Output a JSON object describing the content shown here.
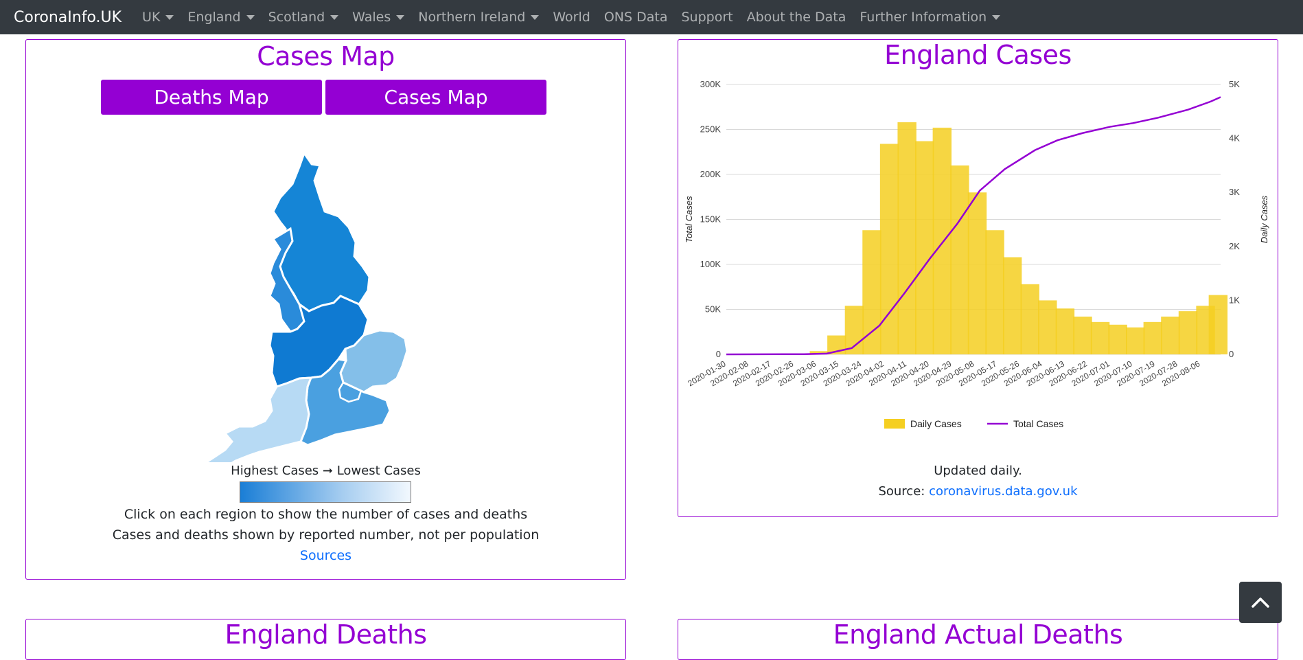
{
  "nav": {
    "brand": "CoronaInfo.UK",
    "items": [
      {
        "label": "UK",
        "dropdown": true
      },
      {
        "label": "England",
        "dropdown": true
      },
      {
        "label": "Scotland",
        "dropdown": true
      },
      {
        "label": "Wales",
        "dropdown": true
      },
      {
        "label": "Northern Ireland",
        "dropdown": true
      },
      {
        "label": "World",
        "dropdown": false
      },
      {
        "label": "ONS Data",
        "dropdown": false
      },
      {
        "label": "Support",
        "dropdown": false
      },
      {
        "label": "About the Data",
        "dropdown": false
      },
      {
        "label": "Further Information",
        "dropdown": true
      }
    ]
  },
  "map_card": {
    "title": "Cases Map",
    "deaths_button": "Deaths Map",
    "cases_button": "Cases Map",
    "legend_title": "Highest Cases ➞ Lowest Cases",
    "info_line1": "Click on each region to show the number of cases and deaths",
    "info_line2": "Cases and deaths shown by reported number, not per population",
    "sources_link": "Sources",
    "region_colors": {
      "north": "#1585d6",
      "northwest": "#2a8bda",
      "midlands": "#0f7ad2",
      "east": "#84bfe9",
      "south": "#4aa0e0",
      "southwest": "#b7daf4"
    }
  },
  "cases_card": {
    "title": "England Cases",
    "updated": "Updated daily.",
    "source_prefix": "Source:",
    "source_link": "coronavirus.data.gov.uk"
  },
  "deaths_card": {
    "title": "England Deaths"
  },
  "actual_card": {
    "title": "England Actual Deaths"
  },
  "colors": {
    "accent": "#9400d3",
    "bar": "#f5cf21",
    "line": "#9400d3",
    "navbar": "#343a40"
  },
  "chart_data": {
    "type": "bar",
    "title": "England Cases",
    "y_left_label": "Total Cases",
    "y_right_label": "Daily Cases",
    "y_left_ticks": [
      "0",
      "50K",
      "100K",
      "150K",
      "200K",
      "250K",
      "300K"
    ],
    "y_right_ticks": [
      "0",
      "1K",
      "2K",
      "3K",
      "4K",
      "5K"
    ],
    "y_left_range": [
      0,
      300000
    ],
    "y_right_range": [
      0,
      5000
    ],
    "x_tick_labels": [
      "2020-01-30",
      "2020-02-08",
      "2020-02-17",
      "2020-02-26",
      "2020-03-06",
      "2020-03-15",
      "2020-03-24",
      "2020-04-02",
      "2020-04-11",
      "2020-04-20",
      "2020-04-29",
      "2020-05-08",
      "2020-05-17",
      "2020-05-26",
      "2020-06-04",
      "2020-06-13",
      "2020-06-22",
      "2020-07-01",
      "2020-07-10",
      "2020-07-19",
      "2020-07-28",
      "2020-08-06"
    ],
    "x_range": [
      "2020-01-30",
      "2020-08-14"
    ],
    "grid": true,
    "legend_position": "bottom",
    "series": [
      {
        "name": "Daily Cases",
        "type": "bar",
        "axis": "right",
        "x": [
          "2020-02-29",
          "2020-03-07",
          "2020-03-14",
          "2020-03-21",
          "2020-03-28",
          "2020-04-04",
          "2020-04-11",
          "2020-04-18",
          "2020-04-25",
          "2020-05-02",
          "2020-05-09",
          "2020-05-16",
          "2020-05-23",
          "2020-05-30",
          "2020-06-06",
          "2020-06-13",
          "2020-06-20",
          "2020-06-27",
          "2020-07-04",
          "2020-07-11",
          "2020-07-18",
          "2020-07-25",
          "2020-08-01",
          "2020-08-08",
          "2020-08-13"
        ],
        "values": [
          5,
          60,
          350,
          900,
          2300,
          3900,
          4300,
          3950,
          4200,
          3500,
          3000,
          2300,
          1800,
          1300,
          1000,
          850,
          700,
          600,
          550,
          500,
          600,
          700,
          800,
          900,
          1100
        ]
      },
      {
        "name": "Total Cases",
        "type": "line",
        "axis": "left",
        "x": [
          "2020-01-30",
          "2020-03-01",
          "2020-03-10",
          "2020-03-20",
          "2020-03-31",
          "2020-04-10",
          "2020-04-20",
          "2020-05-01",
          "2020-05-10",
          "2020-05-20",
          "2020-06-01",
          "2020-06-10",
          "2020-06-20",
          "2020-07-01",
          "2020-07-10",
          "2020-07-20",
          "2020-08-01",
          "2020-08-10",
          "2020-08-14"
        ],
        "values": [
          0,
          200,
          900,
          7000,
          32000,
          68000,
          106000,
          145000,
          182000,
          206000,
          227000,
          238000,
          246000,
          253000,
          257000,
          263000,
          272000,
          281000,
          286000
        ]
      }
    ]
  }
}
